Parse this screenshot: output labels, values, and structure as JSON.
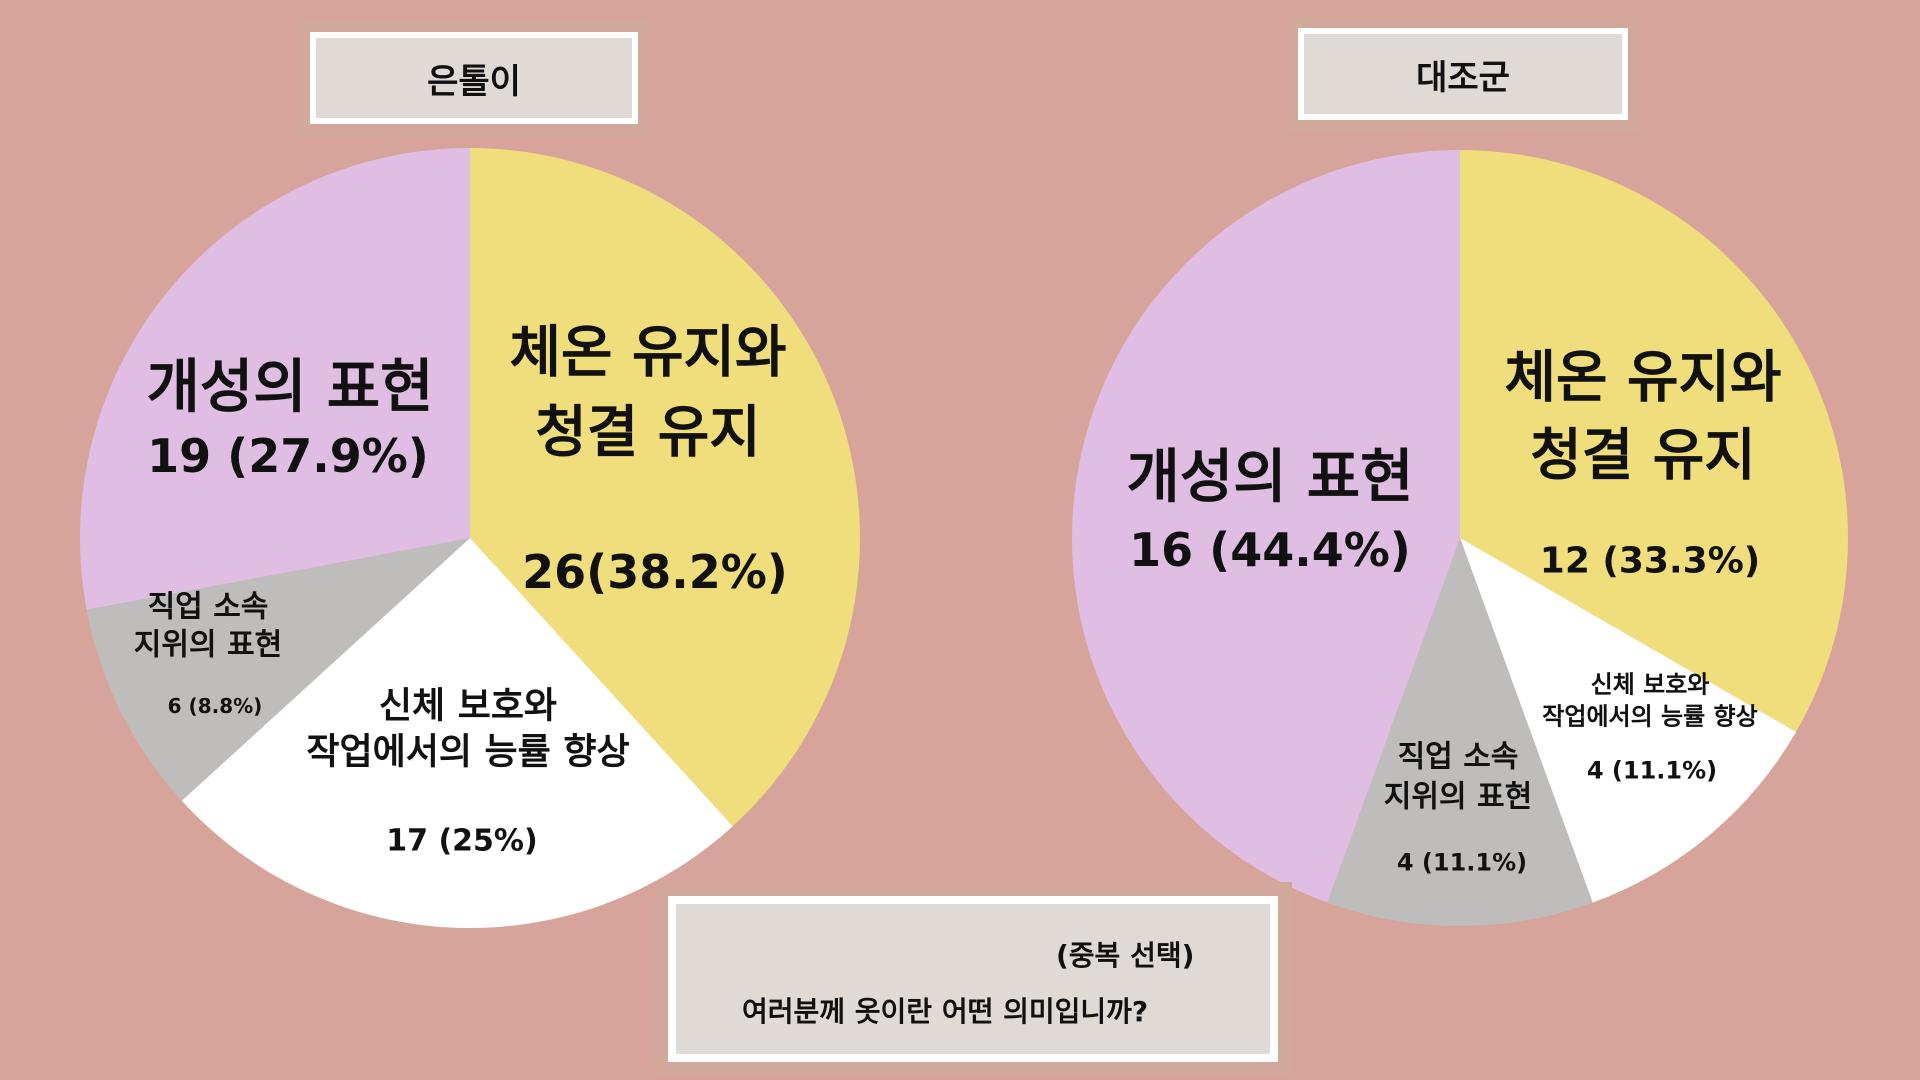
{
  "question": {
    "note": "(중복 선택)",
    "text": "여러분께 옷이란 어떤 의미입니까?"
  },
  "colors": {
    "background": "#D6A49A",
    "warmth": "#F0DD7C",
    "individuality": "#E0BEE4",
    "status": "#BFBDBC",
    "protection": "#FFFFFF"
  },
  "chart_data": [
    {
      "type": "pie",
      "title": "은톨이",
      "slices": [
        {
          "label_lines": [
            "체온 유지와",
            "청결 유지"
          ],
          "value": 26,
          "value_text": "26(38.2%)",
          "color": "#F0DD7C"
        },
        {
          "label_lines": [
            "신체 보호와",
            "작업에서의 능률 향상"
          ],
          "value": 17,
          "value_text": "17 (25%)",
          "color": "#FFFFFF"
        },
        {
          "label_lines": [
            "직업 소속",
            "지위의 표현"
          ],
          "value": 6,
          "value_text": "6 (8.8%)",
          "color": "#BFBDBC"
        },
        {
          "label_lines": [
            "개성의 표현"
          ],
          "value": 19,
          "value_text": "19 (27.9%)",
          "color": "#E0BEE4"
        }
      ]
    },
    {
      "type": "pie",
      "title": "대조군",
      "slices": [
        {
          "label_lines": [
            "체온 유지와",
            "청결 유지"
          ],
          "value": 12,
          "value_text": "12 (33.3%)",
          "color": "#F0DD7C"
        },
        {
          "label_lines": [
            "신체 보호와",
            "작업에서의 능률 향상"
          ],
          "value": 4,
          "value_text": "4 (11.1%)",
          "color": "#FFFFFF"
        },
        {
          "label_lines": [
            "직업 소속",
            "지위의 표현"
          ],
          "value": 4,
          "value_text": "4 (11.1%)",
          "color": "#BFBDBC"
        },
        {
          "label_lines": [
            "개성의 표현"
          ],
          "value": 16,
          "value_text": "16 (44.4%)",
          "color": "#E0BEE4"
        }
      ]
    }
  ]
}
